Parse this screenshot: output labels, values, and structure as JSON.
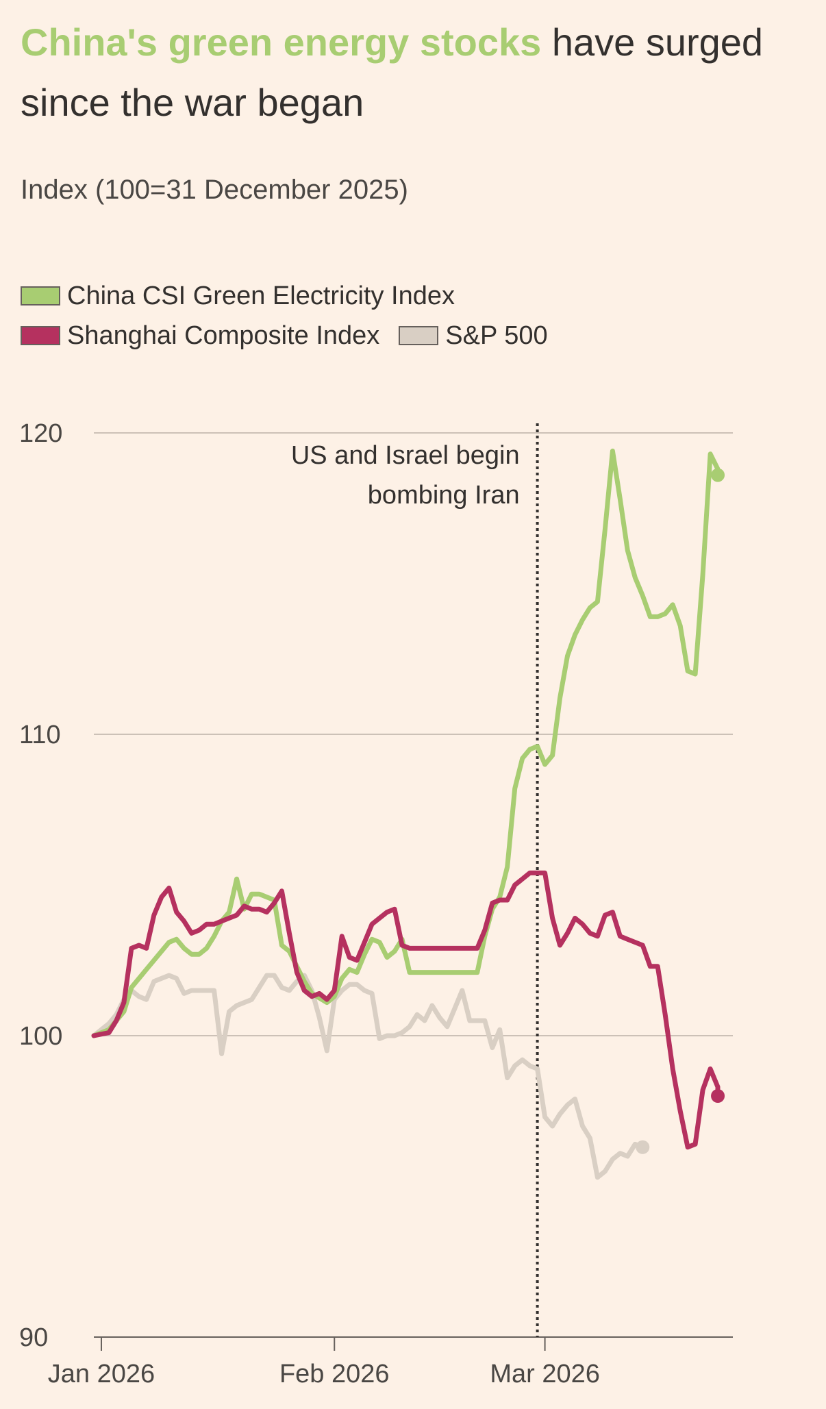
{
  "title": {
    "highlight": "China's green energy stocks",
    "rest": " have surged since the war began"
  },
  "subtitle": "Index (100=31 December 2025)",
  "legend": [
    {
      "label": "China CSI Green Electricity Index",
      "color": "#a8cd72"
    },
    {
      "label": "Shanghai Composite Index",
      "color": "#b5315f"
    },
    {
      "label": "S&P 500",
      "color": "#d9cfc4"
    }
  ],
  "chart_data": {
    "type": "line",
    "ylim": [
      90,
      120
    ],
    "xlim": [
      "2025-12-31",
      "2026-03-26"
    ],
    "y_ticks": [
      {
        "value": 120,
        "label": "120"
      },
      {
        "value": 110,
        "label": "110"
      },
      {
        "value": 100,
        "label": "100"
      },
      {
        "value": 90,
        "label": "90"
      }
    ],
    "x_ticks": [
      {
        "date": "2026-01-01",
        "label": "Jan 2026"
      },
      {
        "date": "2026-02-01",
        "label": "Feb 2026"
      },
      {
        "date": "2026-03-01",
        "label": "Mar 2026"
      }
    ],
    "annotation": {
      "date": "2026-02-28",
      "lines": [
        "US and Israel begin",
        "bombing Iran"
      ]
    },
    "series": [
      {
        "name": "China CSI Green Electricity Index",
        "color": "#a8cd72",
        "points": [
          [
            "2025-12-31",
            100.0
          ],
          [
            "2026-01-02",
            100.2
          ],
          [
            "2026-01-04",
            100.8
          ],
          [
            "2026-01-05",
            101.6
          ],
          [
            "2026-01-06",
            101.9
          ],
          [
            "2026-01-07",
            102.2
          ],
          [
            "2026-01-08",
            102.5
          ],
          [
            "2026-01-09",
            102.8
          ],
          [
            "2026-01-10",
            103.1
          ],
          [
            "2026-01-11",
            103.2
          ],
          [
            "2026-01-12",
            102.9
          ],
          [
            "2026-01-13",
            102.7
          ],
          [
            "2026-01-14",
            102.7
          ],
          [
            "2026-01-15",
            102.9
          ],
          [
            "2026-01-16",
            103.3
          ],
          [
            "2026-01-17",
            103.8
          ],
          [
            "2026-01-18",
            104.1
          ],
          [
            "2026-01-19",
            105.2
          ],
          [
            "2026-01-20",
            104.2
          ],
          [
            "2026-01-21",
            104.7
          ],
          [
            "2026-01-22",
            104.7
          ],
          [
            "2026-01-23",
            104.6
          ],
          [
            "2026-01-24",
            104.5
          ],
          [
            "2026-01-25",
            103.0
          ],
          [
            "2026-01-26",
            102.8
          ],
          [
            "2026-01-27",
            102.3
          ],
          [
            "2026-01-28",
            101.8
          ],
          [
            "2026-01-29",
            101.4
          ],
          [
            "2026-01-31",
            101.1
          ],
          [
            "2026-02-01",
            101.3
          ],
          [
            "2026-02-02",
            101.9
          ],
          [
            "2026-02-03",
            102.2
          ],
          [
            "2026-02-04",
            102.1
          ],
          [
            "2026-02-05",
            102.7
          ],
          [
            "2026-02-06",
            103.2
          ],
          [
            "2026-02-07",
            103.1
          ],
          [
            "2026-02-08",
            102.6
          ],
          [
            "2026-02-09",
            102.8
          ],
          [
            "2026-02-10",
            103.2
          ],
          [
            "2026-02-11",
            102.1
          ],
          [
            "2026-02-12",
            102.1
          ],
          [
            "2026-02-13",
            102.1
          ],
          [
            "2026-02-16",
            102.1
          ],
          [
            "2026-02-19",
            102.1
          ],
          [
            "2026-02-20",
            102.1
          ],
          [
            "2026-02-21",
            103.3
          ],
          [
            "2026-02-22",
            104.2
          ],
          [
            "2026-02-23",
            104.6
          ],
          [
            "2026-02-24",
            105.6
          ],
          [
            "2026-02-25",
            108.2
          ],
          [
            "2026-02-26",
            109.2
          ],
          [
            "2026-02-27",
            109.5
          ],
          [
            "2026-02-28",
            109.6
          ],
          [
            "2026-03-01",
            109.0
          ],
          [
            "2026-03-02",
            109.3
          ],
          [
            "2026-03-03",
            111.2
          ],
          [
            "2026-03-04",
            112.6
          ],
          [
            "2026-03-05",
            113.3
          ],
          [
            "2026-03-06",
            113.8
          ],
          [
            "2026-03-07",
            114.2
          ],
          [
            "2026-03-08",
            114.4
          ],
          [
            "2026-03-09",
            116.8
          ],
          [
            "2026-03-10",
            119.4
          ],
          [
            "2026-03-11",
            117.8
          ],
          [
            "2026-03-12",
            116.1
          ],
          [
            "2026-03-13",
            115.2
          ],
          [
            "2026-03-14",
            114.6
          ],
          [
            "2026-03-15",
            113.9
          ],
          [
            "2026-03-16",
            113.9
          ],
          [
            "2026-03-17",
            114.0
          ],
          [
            "2026-03-18",
            114.3
          ],
          [
            "2026-03-19",
            113.6
          ],
          [
            "2026-03-20",
            112.1
          ],
          [
            "2026-03-21",
            112.0
          ],
          [
            "2026-03-22",
            115.3
          ],
          [
            "2026-03-23",
            119.3
          ],
          [
            "2026-03-24",
            118.8
          ],
          [
            "2026-03-24",
            118.6
          ]
        ]
      },
      {
        "name": "Shanghai Composite Index",
        "color": "#b5315f",
        "points": [
          [
            "2025-12-31",
            100.0
          ],
          [
            "2026-01-02",
            100.1
          ],
          [
            "2026-01-03",
            100.5
          ],
          [
            "2026-01-04",
            101.1
          ],
          [
            "2026-01-05",
            102.9
          ],
          [
            "2026-01-06",
            103.0
          ],
          [
            "2026-01-07",
            102.9
          ],
          [
            "2026-01-08",
            104.0
          ],
          [
            "2026-01-09",
            104.6
          ],
          [
            "2026-01-10",
            104.9
          ],
          [
            "2026-01-11",
            104.1
          ],
          [
            "2026-01-12",
            103.8
          ],
          [
            "2026-01-13",
            103.4
          ],
          [
            "2026-01-14",
            103.5
          ],
          [
            "2026-01-15",
            103.7
          ],
          [
            "2026-01-16",
            103.7
          ],
          [
            "2026-01-17",
            103.8
          ],
          [
            "2026-01-18",
            103.9
          ],
          [
            "2026-01-19",
            104.0
          ],
          [
            "2026-01-20",
            104.3
          ],
          [
            "2026-01-21",
            104.2
          ],
          [
            "2026-01-22",
            104.2
          ],
          [
            "2026-01-23",
            104.1
          ],
          [
            "2026-01-24",
            104.4
          ],
          [
            "2026-01-25",
            104.8
          ],
          [
            "2026-01-26",
            103.4
          ],
          [
            "2026-01-27",
            102.1
          ],
          [
            "2026-01-28",
            101.5
          ],
          [
            "2026-01-29",
            101.3
          ],
          [
            "2026-01-30",
            101.4
          ],
          [
            "2026-01-31",
            101.2
          ],
          [
            "2026-02-01",
            101.5
          ],
          [
            "2026-02-02",
            103.3
          ],
          [
            "2026-02-03",
            102.6
          ],
          [
            "2026-02-04",
            102.5
          ],
          [
            "2026-02-05",
            103.1
          ],
          [
            "2026-02-06",
            103.7
          ],
          [
            "2026-02-07",
            103.9
          ],
          [
            "2026-02-08",
            104.1
          ],
          [
            "2026-02-09",
            104.2
          ],
          [
            "2026-02-10",
            103.0
          ],
          [
            "2026-02-11",
            102.9
          ],
          [
            "2026-02-13",
            102.9
          ],
          [
            "2026-02-16",
            102.9
          ],
          [
            "2026-02-19",
            102.9
          ],
          [
            "2026-02-20",
            102.9
          ],
          [
            "2026-02-21",
            103.5
          ],
          [
            "2026-02-22",
            104.4
          ],
          [
            "2026-02-23",
            104.5
          ],
          [
            "2026-02-24",
            104.5
          ],
          [
            "2026-02-25",
            105.0
          ],
          [
            "2026-02-26",
            105.2
          ],
          [
            "2026-02-27",
            105.4
          ],
          [
            "2026-02-28",
            105.4
          ],
          [
            "2026-03-01",
            105.4
          ],
          [
            "2026-03-02",
            103.9
          ],
          [
            "2026-03-03",
            103.0
          ],
          [
            "2026-03-04",
            103.4
          ],
          [
            "2026-03-05",
            103.9
          ],
          [
            "2026-03-06",
            103.7
          ],
          [
            "2026-03-07",
            103.4
          ],
          [
            "2026-03-08",
            103.3
          ],
          [
            "2026-03-09",
            104.0
          ],
          [
            "2026-03-10",
            104.1
          ],
          [
            "2026-03-11",
            103.3
          ],
          [
            "2026-03-12",
            103.2
          ],
          [
            "2026-03-13",
            103.1
          ],
          [
            "2026-03-14",
            103.0
          ],
          [
            "2026-03-15",
            102.3
          ],
          [
            "2026-03-16",
            102.3
          ],
          [
            "2026-03-17",
            100.7
          ],
          [
            "2026-03-18",
            98.9
          ],
          [
            "2026-03-19",
            97.5
          ],
          [
            "2026-03-20",
            96.3
          ],
          [
            "2026-03-21",
            96.4
          ],
          [
            "2026-03-22",
            98.2
          ],
          [
            "2026-03-23",
            98.9
          ],
          [
            "2026-03-24",
            98.3
          ],
          [
            "2026-03-24",
            98.0
          ]
        ]
      },
      {
        "name": "S&P 500",
        "color": "#d9cfc4",
        "points": [
          [
            "2025-12-31",
            100.0
          ],
          [
            "2026-01-02",
            100.4
          ],
          [
            "2026-01-03",
            100.7
          ],
          [
            "2026-01-04",
            101.2
          ],
          [
            "2026-01-05",
            101.5
          ],
          [
            "2026-01-06",
            101.3
          ],
          [
            "2026-01-07",
            101.2
          ],
          [
            "2026-01-08",
            101.8
          ],
          [
            "2026-01-09",
            101.9
          ],
          [
            "2026-01-10",
            102.0
          ],
          [
            "2026-01-11",
            101.9
          ],
          [
            "2026-01-12",
            101.4
          ],
          [
            "2026-01-13",
            101.5
          ],
          [
            "2026-01-14",
            101.5
          ],
          [
            "2026-01-15",
            101.5
          ],
          [
            "2026-01-16",
            101.5
          ],
          [
            "2026-01-17",
            99.4
          ],
          [
            "2026-01-18",
            100.8
          ],
          [
            "2026-01-19",
            101.0
          ],
          [
            "2026-01-20",
            101.1
          ],
          [
            "2026-01-21",
            101.2
          ],
          [
            "2026-01-22",
            101.6
          ],
          [
            "2026-01-23",
            102.0
          ],
          [
            "2026-01-24",
            102.0
          ],
          [
            "2026-01-25",
            101.6
          ],
          [
            "2026-01-26",
            101.5
          ],
          [
            "2026-01-27",
            101.8
          ],
          [
            "2026-01-28",
            102.0
          ],
          [
            "2026-01-29",
            101.5
          ],
          [
            "2026-01-30",
            100.6
          ],
          [
            "2026-01-31",
            99.5
          ],
          [
            "2026-02-01",
            101.2
          ],
          [
            "2026-02-02",
            101.5
          ],
          [
            "2026-02-03",
            101.7
          ],
          [
            "2026-02-04",
            101.7
          ],
          [
            "2026-02-05",
            101.5
          ],
          [
            "2026-02-06",
            101.4
          ],
          [
            "2026-02-07",
            99.9
          ],
          [
            "2026-02-08",
            100.0
          ],
          [
            "2026-02-09",
            100.0
          ],
          [
            "2026-02-10",
            100.1
          ],
          [
            "2026-02-11",
            100.3
          ],
          [
            "2026-02-12",
            100.7
          ],
          [
            "2026-02-13",
            100.5
          ],
          [
            "2026-02-14",
            101.0
          ],
          [
            "2026-02-15",
            100.6
          ],
          [
            "2026-02-16",
            100.3
          ],
          [
            "2026-02-17",
            100.9
          ],
          [
            "2026-02-18",
            101.5
          ],
          [
            "2026-02-19",
            100.5
          ],
          [
            "2026-02-20",
            100.5
          ],
          [
            "2026-02-21",
            100.5
          ],
          [
            "2026-02-22",
            99.6
          ],
          [
            "2026-02-23",
            100.2
          ],
          [
            "2026-02-24",
            98.6
          ],
          [
            "2026-02-25",
            99.0
          ],
          [
            "2026-02-26",
            99.2
          ],
          [
            "2026-02-27",
            99.0
          ],
          [
            "2026-02-28",
            98.9
          ],
          [
            "2026-03-01",
            97.3
          ],
          [
            "2026-03-02",
            97.0
          ],
          [
            "2026-03-03",
            97.4
          ],
          [
            "2026-03-04",
            97.7
          ],
          [
            "2026-03-05",
            97.9
          ],
          [
            "2026-03-06",
            97.0
          ],
          [
            "2026-03-07",
            96.6
          ],
          [
            "2026-03-08",
            95.3
          ],
          [
            "2026-03-09",
            95.5
          ],
          [
            "2026-03-10",
            95.9
          ],
          [
            "2026-03-11",
            96.1
          ],
          [
            "2026-03-12",
            96.0
          ],
          [
            "2026-03-13",
            96.4
          ],
          [
            "2026-03-14",
            96.3
          ]
        ]
      }
    ]
  }
}
